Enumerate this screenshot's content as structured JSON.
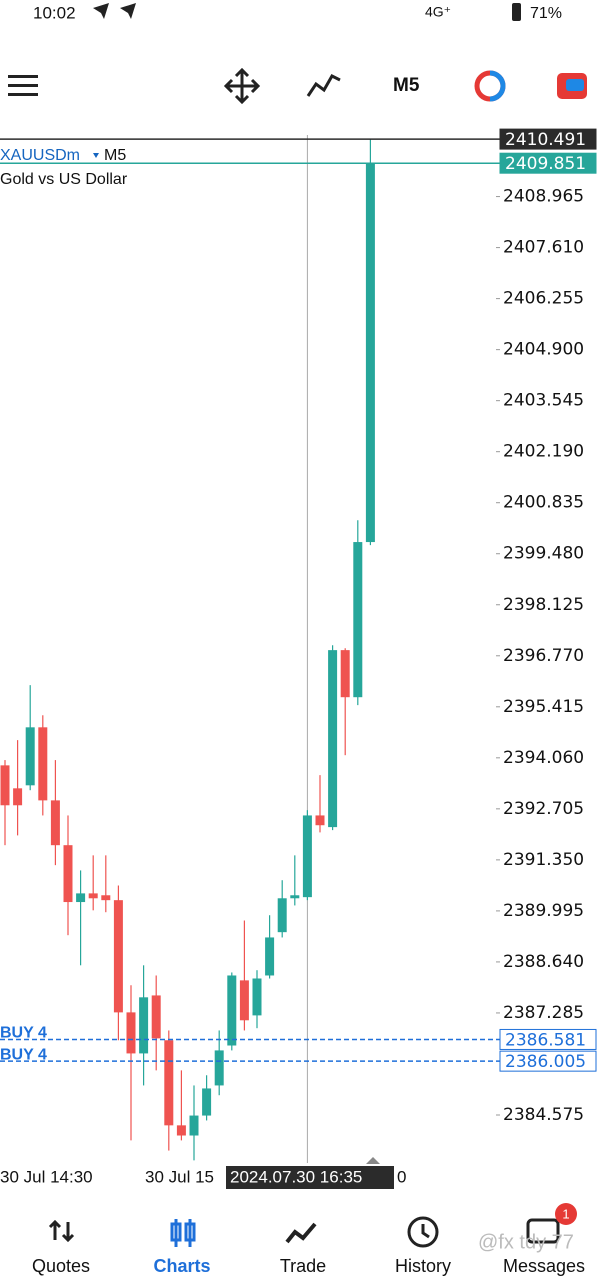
{
  "status_bar": {
    "time": "10:02",
    "network": "4G⁺",
    "battery": "71%"
  },
  "toolbar": {
    "timeframe": "M5"
  },
  "chart_data": {
    "type": "candlestick",
    "symbol": "XAUUSDm",
    "timeframe": "M5",
    "subtitle": "Gold vs US Dollar",
    "up_color": "#26a69a",
    "down_color": "#ef5350",
    "ylim": [
      2383.3,
      2410.6
    ],
    "yticks": [
      2408.965,
      {
        "value": 2407.61,
        "label": "2407.610"
      },
      2406.255,
      {
        "value": 2404.9,
        "label": "2404.900"
      },
      2403.545,
      {
        "value": 2402.19,
        "label": "2402.190"
      },
      2400.835,
      {
        "value": 2399.48,
        "label": "2399.480"
      },
      2398.125,
      {
        "value": 2396.77,
        "label": "2396.770"
      },
      2395.415,
      {
        "value": 2394.06,
        "label": "2394.060"
      },
      2392.705,
      {
        "value": 2391.35,
        "label": "2391.350"
      },
      2389.995,
      {
        "value": 2388.64,
        "label": "2388.640"
      },
      2387.285,
      2384.575
    ],
    "series": [
      {
        "open": [
          2393.86,
          2393.25,
          2393.33,
          2394.87,
          2392.93,
          2391.74,
          2390.23,
          2390.46,
          2390.41,
          2390.28,
          2387.3,
          2386.21,
          2387.75,
          2386.56,
          2384.3,
          2384.03,
          2384.56,
          2385.36,
          2386.42,
          2388.15,
          2387.22,
          2388.28,
          2389.43,
          2390.33,
          2390.36,
          2392.53,
          2392.22,
          2396.92,
          2395.67,
          2399.79
        ],
        "high": [
          2394.0,
          2394.53,
          2395.99,
          2395.19,
          2394.0,
          2392.53,
          2391.07,
          2391.47,
          2391.47,
          2390.67,
          2388.02,
          2388.55,
          2388.28,
          2386.82,
          2385.76,
          2385.36,
          2385.63,
          2386.82,
          2388.36,
          2389.74,
          2388.42,
          2389.88,
          2390.81,
          2391.47,
          2392.67,
          2393.6,
          2397.05,
          2396.97,
          2400.37,
          2410.491
        ],
        "low": [
          2391.74,
          2392.0,
          2393.2,
          2392.53,
          2391.21,
          2389.35,
          2388.55,
          2390.01,
          2389.96,
          2386.56,
          2383.9,
          2385.36,
          2385.76,
          2383.63,
          2383.9,
          2383.37,
          2384.43,
          2385.1,
          2386.29,
          2386.82,
          2386.88,
          2388.2,
          2389.29,
          2390.14,
          2390.28,
          2392.08,
          2392.14,
          2394.13,
          2395.46,
          2399.71
        ],
        "close": [
          2392.8,
          2392.8,
          2394.87,
          2392.93,
          2391.74,
          2390.23,
          2390.46,
          2390.33,
          2390.28,
          2387.3,
          2386.21,
          2387.7,
          2386.61,
          2384.3,
          2384.03,
          2384.56,
          2385.28,
          2386.29,
          2388.28,
          2387.09,
          2388.2,
          2389.29,
          2390.33,
          2390.41,
          2392.53,
          2392.27,
          2396.92,
          2395.67,
          2399.79,
          2409.851
        ]
      }
    ],
    "ask_line": 2410.491,
    "bid_line": 2409.851,
    "orders": [
      {
        "label": "BUY 4",
        "value": 2386.581
      },
      {
        "label": "BUY 4",
        "value": 2386.005
      }
    ],
    "x_labels": [
      "30 Jul 14:30",
      "30 Jul 15",
      "0"
    ],
    "crosshair_time": "2024.07.30 16:35"
  },
  "nav": {
    "items": [
      {
        "label": "Quotes"
      },
      {
        "label": "Charts"
      },
      {
        "label": "Trade"
      },
      {
        "label": "History"
      },
      {
        "label": "Messages"
      }
    ],
    "badge": "1"
  },
  "watermark": "@fx tdy 77"
}
